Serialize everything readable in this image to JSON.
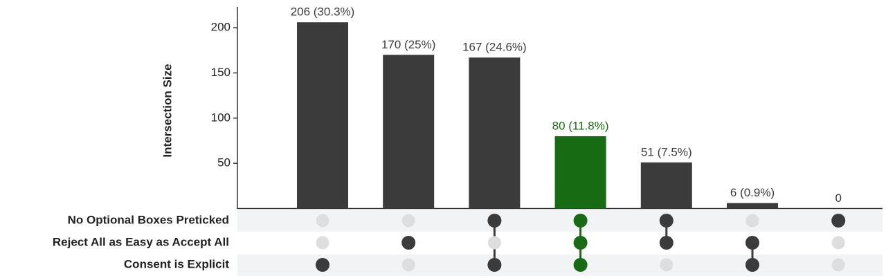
{
  "chart_data": {
    "type": "upset",
    "y_label": "Intersection Size",
    "sets": [
      "No Optional Boxes Preticked",
      "Reject All as Easy as Accept All",
      "Consent is Explicit"
    ],
    "membership": [
      [
        0,
        0,
        1
      ],
      [
        0,
        1,
        0
      ],
      [
        1,
        0,
        1
      ],
      [
        1,
        1,
        1
      ],
      [
        1,
        1,
        0
      ],
      [
        0,
        1,
        1
      ],
      [
        1,
        0,
        0
      ]
    ],
    "values": [
      206,
      170,
      167,
      80,
      51,
      6,
      0
    ],
    "value_labels": [
      "206 (30.3%)",
      "170 (25%)",
      "167 (24.6%)",
      "80 (11.8%)",
      "51 (7.5%)",
      "6 (0.9%)",
      "0"
    ],
    "colors": [
      "#3b3b3b",
      "#3b3b3b",
      "#3b3b3b",
      "#176b12",
      "#3b3b3b",
      "#3b3b3b",
      "#3b3b3b"
    ],
    "inactive_color": "#dedede",
    "ylim": [
      0,
      223
    ],
    "yticks": [
      50,
      100,
      150,
      200
    ]
  }
}
